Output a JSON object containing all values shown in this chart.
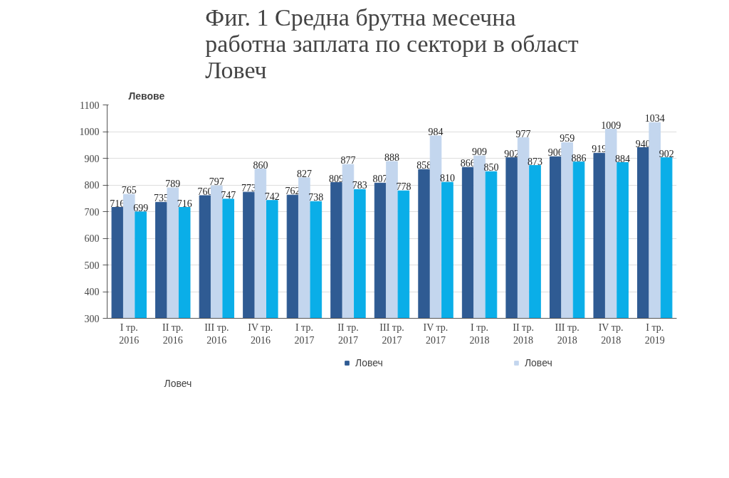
{
  "chart_data": {
    "type": "bar",
    "title": "Фиг. 1   Средна брутна месечна\nработна заплата по сектори в област\nЛовеч",
    "ylabel": "Левове",
    "categories": [
      "I тр.\n2016",
      "II тр.\n2016",
      "III тр.\n2016",
      "IV тр.\n2016",
      "I тр.\n2017",
      "II тр.\n2017",
      "III тр.\n2017",
      "IV тр.\n2017",
      "I тр.\n2018",
      "II тр.\n2018",
      "III тр.\n2018",
      "IV тр.\n2018",
      "I тр.\n2019"
    ],
    "series": [
      {
        "name": "Ловеч",
        "color": "#2f5b93",
        "values": [
          716,
          735,
          760,
          773,
          762,
          809,
          807,
          858,
          866,
          902,
          906,
          919,
          940
        ]
      },
      {
        "name": "Ловеч",
        "color": "#c3d6ee",
        "values": [
          765,
          789,
          797,
          860,
          827,
          877,
          888,
          984,
          909,
          977,
          959,
          1009,
          1034
        ]
      },
      {
        "color": "#0aaee8",
        "values": [
          699,
          716,
          747,
          742,
          738,
          783,
          778,
          810,
          850,
          873,
          886,
          884,
          902
        ]
      }
    ],
    "ylim": [
      300,
      1100
    ],
    "yticks": [
      300,
      400,
      500,
      600,
      700,
      800,
      900,
      1000,
      1100
    ],
    "grid": "y",
    "legend": "bottom",
    "data_labels": true,
    "annotations": [
      "Ловеч"
    ]
  }
}
